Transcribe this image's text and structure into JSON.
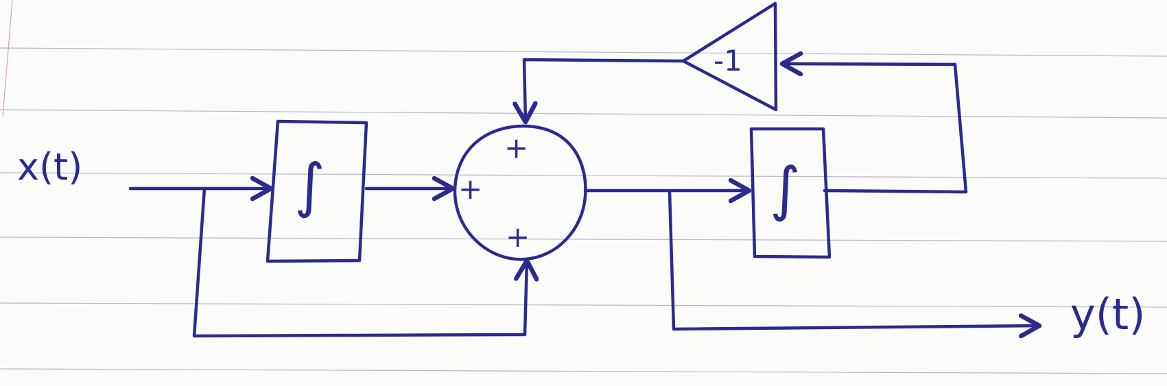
{
  "diagram": {
    "input_label": "x(t)",
    "output_label": "y(t)",
    "gain_label": "-1",
    "integrator_symbol": "∫",
    "sum_signs": [
      "+",
      "+",
      "+"
    ],
    "ink_color": "#2b2a8f",
    "paper_color": "#fbfbfa",
    "rule_color": "#b9b9c7"
  }
}
